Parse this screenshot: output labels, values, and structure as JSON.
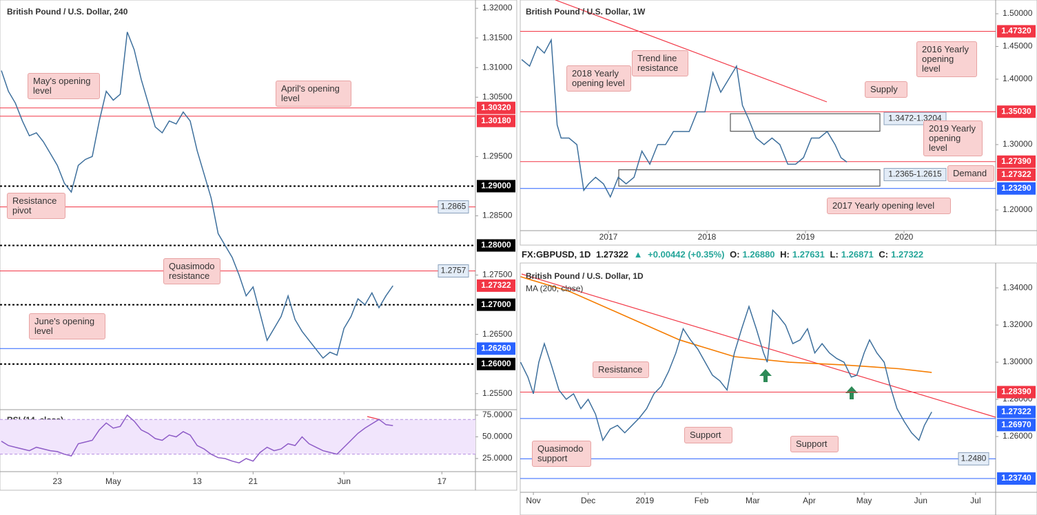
{
  "header": {
    "symbol": "FX:GBPUSD, 1D",
    "last": "1.27322",
    "change": "+0.00442 (+0.35%)",
    "ohlc": [
      {
        "label": "O:",
        "value": "1.26880"
      },
      {
        "label": "H:",
        "value": "1.27631"
      },
      {
        "label": "L:",
        "value": "1.26871"
      },
      {
        "label": "C:",
        "value": "1.27322"
      }
    ]
  },
  "chart_data": [
    {
      "type": "line",
      "title": "British Pound / U.S. Dollar, 240",
      "color": "#3d6f9c",
      "x": [
        -8,
        -7,
        -6,
        -5,
        -4,
        -3,
        -2,
        -1,
        0,
        1,
        2,
        3,
        4,
        5,
        6,
        7,
        8,
        9,
        10,
        11,
        12,
        13,
        14,
        15,
        16,
        17,
        18,
        19,
        20,
        21,
        22,
        23,
        24,
        25,
        26,
        27,
        28,
        29,
        30,
        31,
        32,
        33,
        34,
        35,
        36,
        37,
        38,
        39,
        40,
        41,
        42,
        43,
        44,
        45,
        46,
        47,
        48
      ],
      "values": [
        1.3095,
        1.306,
        1.304,
        1.301,
        1.2985,
        1.299,
        1.2975,
        1.2955,
        1.2935,
        1.2905,
        1.289,
        1.2935,
        1.2945,
        1.295,
        1.301,
        1.306,
        1.3045,
        1.3055,
        1.316,
        1.313,
        1.308,
        1.304,
        1.3,
        1.299,
        1.301,
        1.3005,
        1.3025,
        1.301,
        1.296,
        1.292,
        1.288,
        1.282,
        1.28,
        1.278,
        1.275,
        1.2715,
        1.273,
        1.2685,
        1.264,
        1.266,
        1.268,
        1.2715,
        1.2675,
        1.2655,
        1.264,
        1.2625,
        1.261,
        1.262,
        1.2615,
        1.266,
        1.268,
        1.271,
        1.27,
        1.272,
        1.2695,
        1.2715,
        1.2732
      ],
      "xlim": [
        -8.2,
        59.8
      ],
      "ylim": [
        1.2523,
        1.3214
      ],
      "xticks": [
        {
          "value": 0,
          "label": "23"
        },
        {
          "value": 8,
          "label": "May"
        },
        {
          "value": 20,
          "label": "13"
        },
        {
          "value": 28,
          "label": "21"
        },
        {
          "value": 41,
          "label": "Jun"
        },
        {
          "value": 55,
          "label": "17"
        }
      ],
      "yticks": [
        {
          "value": 1.32,
          "label": "1.32000"
        },
        {
          "value": 1.315,
          "label": "1.31500"
        },
        {
          "value": 1.31,
          "label": "1.31000"
        },
        {
          "value": 1.305,
          "label": "1.30500"
        },
        {
          "value": 1.295,
          "label": "1.29500"
        },
        {
          "value": 1.285,
          "label": "1.28500"
        },
        {
          "value": 1.275,
          "label": "1.27500"
        },
        {
          "value": 1.265,
          "label": "1.26500"
        },
        {
          "value": 1.255,
          "label": "1.25500"
        }
      ],
      "levels": [
        {
          "value": 1.3032,
          "label": "1.30320",
          "color": "#f23645"
        },
        {
          "value": 1.3018,
          "label": "1.30180",
          "color": "#f23645"
        },
        {
          "value": 1.29,
          "label": "1.29000",
          "color": "#000000",
          "dash": true
        },
        {
          "value": 1.2865,
          "label": "1.2865",
          "color": "#f23645",
          "badge": "light"
        },
        {
          "value": 1.28,
          "label": "1.28000",
          "color": "#000000",
          "dash": true
        },
        {
          "value": 1.2757,
          "label": "1.2757",
          "color": "#f23645",
          "badge": "light"
        },
        {
          "value": 1.27322,
          "label": "1.27322",
          "color": "#f23645",
          "line": false
        },
        {
          "value": 1.27,
          "label": "1.27000",
          "color": "#000000",
          "dash": true
        },
        {
          "value": 1.2626,
          "label": "1.26260",
          "color": "#2962ff"
        },
        {
          "value": 1.26,
          "label": "1.26000",
          "color": "#000000",
          "dash": true
        }
      ],
      "annotations": [
        "May's opening level",
        "April's opening level",
        "Resistance pivot",
        "Quasimodo resistance",
        "June's opening level"
      ]
    },
    {
      "type": "line",
      "title": "RSI (14, close)",
      "color": "#8e5cc7",
      "x": [
        -8,
        -7,
        -6,
        -5,
        -4,
        -3,
        -2,
        -1,
        0,
        1,
        2,
        3,
        4,
        5,
        6,
        7,
        8,
        9,
        10,
        11,
        12,
        13,
        14,
        15,
        16,
        17,
        18,
        19,
        20,
        21,
        22,
        23,
        24,
        25,
        26,
        27,
        28,
        29,
        30,
        31,
        32,
        33,
        34,
        35,
        36,
        37,
        38,
        39,
        40,
        41,
        42,
        43,
        44,
        45,
        46,
        47,
        48
      ],
      "values": [
        45,
        40,
        38,
        36,
        34,
        38,
        36,
        34,
        33,
        30,
        28,
        42,
        44,
        46,
        58,
        66,
        60,
        62,
        75,
        68,
        58,
        54,
        48,
        46,
        52,
        50,
        56,
        52,
        40,
        36,
        30,
        26,
        25,
        22,
        20,
        25,
        22,
        32,
        38,
        34,
        36,
        42,
        40,
        50,
        42,
        38,
        34,
        32,
        30,
        38,
        46,
        54,
        60,
        65,
        70,
        64,
        63
      ],
      "xlim": [
        -8.2,
        59.8
      ],
      "ylim": [
        9.9,
        81.3
      ],
      "band": [
        30,
        70
      ],
      "yticks": [
        {
          "value": 75,
          "label": "75.0000"
        },
        {
          "value": 50,
          "label": "50.0000"
        },
        {
          "value": 25,
          "label": "25.0000"
        }
      ]
    },
    {
      "type": "line",
      "title": "British Pound / U.S. Dollar, 1W",
      "color": "#3d6f9c",
      "x": [
        2016.12,
        2016.2,
        2016.28,
        2016.35,
        2016.42,
        2016.48,
        2016.52,
        2016.6,
        2016.68,
        2016.75,
        2016.8,
        2016.87,
        2016.95,
        2017.02,
        2017.1,
        2017.18,
        2017.26,
        2017.34,
        2017.42,
        2017.5,
        2017.58,
        2017.66,
        2017.74,
        2017.82,
        2017.9,
        2017.98,
        2018.06,
        2018.14,
        2018.22,
        2018.3,
        2018.36,
        2018.42,
        2018.5,
        2018.58,
        2018.66,
        2018.74,
        2018.82,
        2018.9,
        2018.98,
        2019.06,
        2019.14,
        2019.22,
        2019.3,
        2019.36,
        2019.42
      ],
      "values": [
        1.43,
        1.42,
        1.45,
        1.44,
        1.46,
        1.33,
        1.31,
        1.31,
        1.3,
        1.23,
        1.24,
        1.25,
        1.24,
        1.22,
        1.25,
        1.24,
        1.25,
        1.29,
        1.27,
        1.3,
        1.3,
        1.32,
        1.32,
        1.32,
        1.35,
        1.35,
        1.41,
        1.38,
        1.4,
        1.42,
        1.36,
        1.34,
        1.31,
        1.3,
        1.31,
        1.3,
        1.27,
        1.27,
        1.28,
        1.31,
        1.31,
        1.32,
        1.3,
        1.28,
        1.2732
      ],
      "xlim": [
        2016.105,
        2020.93
      ],
      "ylim": [
        1.1684,
        1.5179
      ],
      "xticks": [
        2017,
        2018,
        2019,
        2020
      ],
      "yticks": [
        {
          "value": 1.5,
          "label": "1.50000"
        },
        {
          "value": 1.45,
          "label": "1.45000"
        },
        {
          "value": 1.4,
          "label": "1.40000"
        },
        {
          "value": 1.3,
          "label": "1.30000"
        },
        {
          "value": 1.2,
          "label": "1.20000"
        }
      ],
      "levels": [
        {
          "value": 1.4732,
          "label": "1.47320",
          "color": "#f23645"
        },
        {
          "value": 1.3503,
          "label": "1.35030",
          "color": "#f23645"
        },
        {
          "value": 1.2739,
          "label": "1.27390",
          "color": "#f23645"
        },
        {
          "value": 1.27322,
          "label": "1.27322",
          "color": "#f23645",
          "line": false
        },
        {
          "value": 1.2329,
          "label": "1.23290",
          "color": "#2962ff"
        }
      ],
      "zones": [
        {
          "label": "1.3472-1.3204",
          "high": 1.3472,
          "low": 1.3204
        },
        {
          "label": "1.2365-1.2615",
          "high": 1.2615,
          "low": 1.2365
        }
      ],
      "annotations": [
        "Trend line resistance",
        "2018 Yearly opening level",
        "2016 Yearly opening level",
        "Supply",
        "2019 Yearly opening level",
        "Demand",
        "2017 Yearly opening level"
      ]
    },
    {
      "type": "line",
      "title": "British Pound / U.S. Dollar, 1D",
      "color": "#3d6f9c",
      "x": [
        -7,
        -3,
        0,
        3,
        6,
        10,
        14,
        18,
        22,
        26,
        30,
        34,
        38,
        42,
        46,
        50,
        54,
        58,
        62,
        66,
        70,
        74,
        78,
        82,
        86,
        90,
        94,
        98,
        102,
        106,
        110,
        114,
        118,
        122,
        126,
        128,
        131,
        134,
        138,
        142,
        146,
        150,
        154,
        158,
        162,
        166,
        170,
        174,
        177,
        181,
        184,
        188,
        192,
        195,
        199,
        203,
        207,
        211,
        214,
        218
      ],
      "values": [
        1.3,
        1.292,
        1.283,
        1.3,
        1.31,
        1.298,
        1.285,
        1.28,
        1.283,
        1.275,
        1.28,
        1.272,
        1.258,
        1.264,
        1.266,
        1.262,
        1.266,
        1.27,
        1.275,
        1.283,
        1.287,
        1.295,
        1.305,
        1.318,
        1.312,
        1.307,
        1.3,
        1.293,
        1.29,
        1.285,
        1.305,
        1.318,
        1.33,
        1.318,
        1.305,
        1.3,
        1.328,
        1.325,
        1.32,
        1.31,
        1.312,
        1.318,
        1.305,
        1.31,
        1.305,
        1.302,
        1.3,
        1.292,
        1.293,
        1.305,
        1.312,
        1.305,
        1.3,
        1.288,
        1.275,
        1.268,
        1.262,
        1.258,
        1.266,
        1.27322
      ],
      "ma": {
        "label": "MA (200, close)",
        "color": "#f57c00",
        "x": [
          -7,
          20,
          50,
          80,
          110,
          140,
          170,
          200,
          218
        ],
        "values": [
          1.346,
          1.338,
          1.325,
          1.312,
          1.303,
          1.3,
          1.2985,
          1.2965,
          1.2945
        ]
      },
      "xlim": [
        -7.2,
        253
      ],
      "ylim": [
        1.23,
        1.353
      ],
      "xticks": [
        {
          "value": 0,
          "label": "Nov"
        },
        {
          "value": 30,
          "label": "Dec"
        },
        {
          "value": 61,
          "label": "2019"
        },
        {
          "value": 92,
          "label": "Feb"
        },
        {
          "value": 120,
          "label": "Mar"
        },
        {
          "value": 151,
          "label": "Apr"
        },
        {
          "value": 181,
          "label": "May"
        },
        {
          "value": 212,
          "label": "Jun"
        },
        {
          "value": 242,
          "label": "Jul"
        }
      ],
      "yticks": [
        {
          "value": 1.34,
          "label": "1.34000"
        },
        {
          "value": 1.32,
          "label": "1.32000"
        },
        {
          "value": 1.3,
          "label": "1.30000"
        },
        {
          "value": 1.28,
          "label": "1.28000"
        },
        {
          "value": 1.26,
          "label": "1.26000"
        }
      ],
      "levels": [
        {
          "value": 1.2839,
          "label": "1.28390",
          "color": "#f23645"
        },
        {
          "value": 1.27322,
          "label": "1.27322",
          "color": "#2962ff",
          "line": false
        },
        {
          "value": 1.2697,
          "label": "1.26970",
          "color": "#2962ff"
        },
        {
          "value": 1.248,
          "label": "1.2480",
          "color": "#2962ff",
          "badge": "light"
        },
        {
          "value": 1.2374,
          "label": "1.23740",
          "color": "#2962ff"
        }
      ],
      "annotations": [
        "Resistance",
        "Support",
        "Quasimodo support",
        "Support"
      ]
    }
  ]
}
